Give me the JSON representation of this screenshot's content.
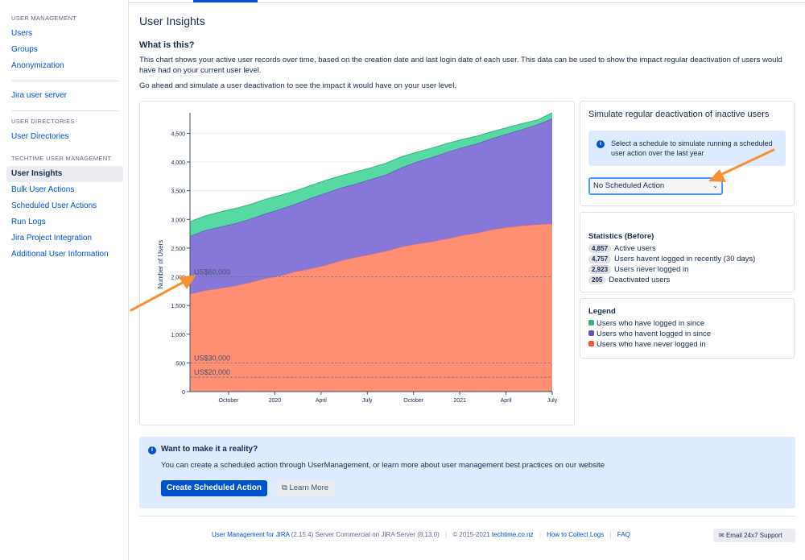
{
  "sidebar": {
    "groups": [
      {
        "heading": "USER MANAGEMENT",
        "items": [
          "Users",
          "Groups",
          "Anonymization"
        ]
      },
      {
        "heading": "",
        "items": [
          "Jira user server"
        ]
      },
      {
        "heading": "USER DIRECTORIES",
        "items": [
          "User Directories"
        ]
      },
      {
        "heading": "TECHTIME USER MANAGEMENT",
        "items": [
          "User Insights",
          "Bulk User Actions",
          "Scheduled User Actions",
          "Run Logs",
          "Jira Project Integration",
          "Additional User Information"
        ]
      }
    ],
    "active": "User Insights"
  },
  "page": {
    "title": "User Insights",
    "what_title": "What is this?",
    "para1": "This chart shows your active user records over time, based on the creation date and last login date of each user. This data can be used to show the impact regular deactivation of users would have had on your current user level.",
    "para2": "Go ahead and simulate a user deactivation to see the impact it would have on your user level."
  },
  "chart_data": {
    "type": "area",
    "ylabel": "Number of Users",
    "xlabel": "",
    "ylim": [
      0,
      4857
    ],
    "x_ticks": [
      "October",
      "2020",
      "April",
      "July",
      "October",
      "2021",
      "April",
      "July"
    ],
    "y_ticks": [
      0,
      500,
      1000,
      1500,
      2000,
      2500,
      3000,
      3500,
      4000,
      4500
    ],
    "y_tick_labels": [
      "0",
      "500",
      "1,000",
      "1,500",
      "2,000",
      "2,500",
      "3,000",
      "3,500",
      "4,000",
      "4,500"
    ],
    "x": [
      0,
      1,
      2,
      3,
      4,
      5,
      6,
      7,
      8,
      9,
      10,
      11,
      12,
      13,
      14,
      15,
      16,
      17,
      18,
      19,
      20,
      21,
      22,
      23,
      24
    ],
    "series": [
      {
        "name": "Users who have never logged in",
        "color": "#ff8f73",
        "values": [
          1700,
          1760,
          1800,
          1840,
          1900,
          1970,
          2020,
          2090,
          2140,
          2200,
          2280,
          2340,
          2390,
          2450,
          2520,
          2570,
          2610,
          2660,
          2720,
          2760,
          2820,
          2860,
          2890,
          2910,
          2923
        ]
      },
      {
        "name": "Users who havent logged in since",
        "color": "#8777d9",
        "values": [
          1010,
          1050,
          1070,
          1090,
          1110,
          1130,
          1160,
          1180,
          1230,
          1260,
          1270,
          1280,
          1310,
          1330,
          1380,
          1430,
          1470,
          1510,
          1530,
          1560,
          1590,
          1630,
          1680,
          1740,
          1834
        ]
      },
      {
        "name": "Users who have logged in since",
        "color": "#57d9a3",
        "values": [
          250,
          250,
          260,
          260,
          250,
          250,
          240,
          230,
          220,
          220,
          210,
          210,
          200,
          200,
          190,
          170,
          160,
          150,
          140,
          130,
          120,
          110,
          100,
          80,
          100
        ]
      }
    ],
    "reference_lines": [
      {
        "label": "US$60,000",
        "value": 2000
      },
      {
        "label": "US$30,000",
        "value": 500
      },
      {
        "label": "US$20,000",
        "value": 250
      }
    ],
    "grid": true
  },
  "simulate": {
    "title": "Simulate regular deactivation of inactive users",
    "info": "Select a schedule to simulate running a scheduled user action over the last year",
    "select_value": "No Scheduled Action"
  },
  "stats": {
    "title": "Statistics (Before)",
    "rows": [
      {
        "count": "4,857",
        "label": "Active users"
      },
      {
        "count": "4,757",
        "label": "Users havent logged in recently (30 days)"
      },
      {
        "count": "2,923",
        "label": "Users never logged in"
      },
      {
        "count": "205",
        "label": "Deactivated users"
      }
    ]
  },
  "legend": {
    "title": "Legend",
    "items": [
      {
        "label": "Users who have logged in since",
        "color": "#36b37e"
      },
      {
        "label": "Users who havent logged in since",
        "color": "#6554c0"
      },
      {
        "label": "Users who have never logged in",
        "color": "#ff5630"
      }
    ]
  },
  "cta": {
    "title": "Want to make it a reality?",
    "text": "You can create a scheduled action through UserManagement, or learn more about user management best practices on our website",
    "primary": "Create Scheduled Action",
    "secondary": "Learn More"
  },
  "footer": {
    "product": "User Management for JIRA",
    "version": "(2.15.4) Server Commercial on JIRA Server (8.13.0)",
    "copyright": "© 2015-2021",
    "company": "techtime.co.nz",
    "logs": "How to Collect Logs",
    "faq": "FAQ",
    "support": "Email 24x7 Support"
  },
  "colors": {
    "accent": "#0052cc",
    "arrow": "#f79232"
  }
}
